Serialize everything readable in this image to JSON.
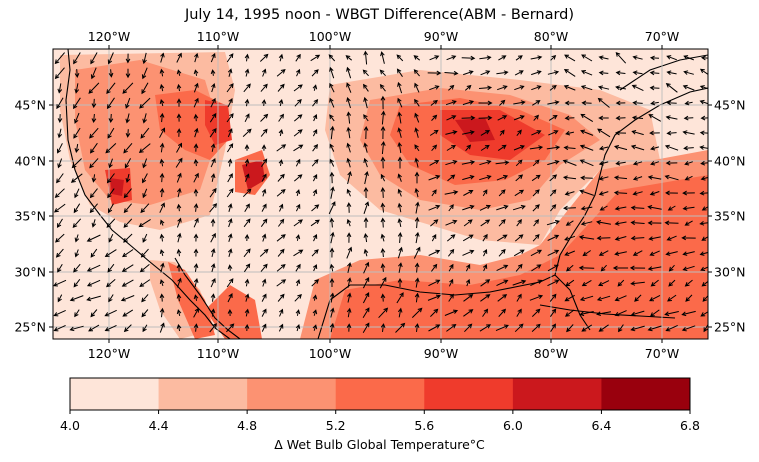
{
  "title": "July 14, 1995 noon - WBGT Difference(ABM - Bernard)",
  "lon_labels": [
    "120°W",
    "110°W",
    "100°W",
    "90°W",
    "80°W",
    "70°W"
  ],
  "lat_labels": [
    "45°N",
    "40°N",
    "35°N",
    "30°N",
    "25°N"
  ],
  "colorbar": {
    "ticks": [
      "4.0",
      "4.4",
      "4.8",
      "5.2",
      "5.6",
      "6.0",
      "6.4",
      "6.8"
    ],
    "colors": [
      "#fee5d9",
      "#fcbba1",
      "#fc9272",
      "#fb6a4a",
      "#ef3b2c",
      "#cb181d",
      "#99000d"
    ],
    "label": "Δ Wet Bulb Global Temperature°C"
  }
}
